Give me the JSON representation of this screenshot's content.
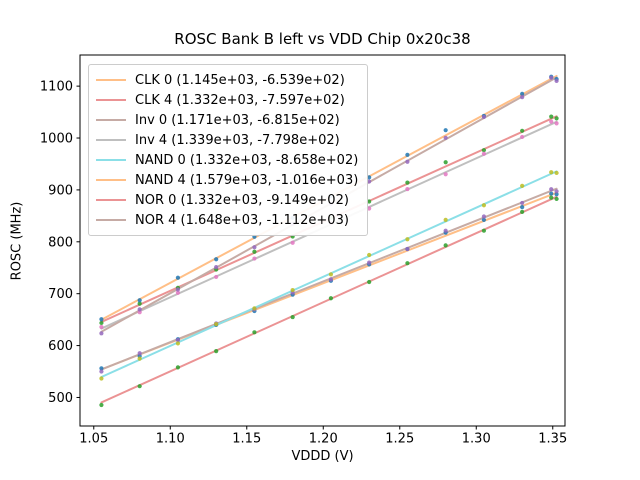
{
  "title": "ROSC Bank B left vs VDD Chip 0x20c38",
  "chart_data": {
    "type": "scatter",
    "title": "ROSC Bank B left vs VDD Chip 0x20c38",
    "xlabel": "VDDD (V)",
    "ylabel": "ROSC (MHz)",
    "xlim": [
      1.041,
      1.358
    ],
    "ylim": [
      445,
      1160
    ],
    "xtick_labels": [
      "1.05",
      "1.10",
      "1.15",
      "1.20",
      "1.25",
      "1.30",
      "1.35"
    ],
    "xticks": [
      1.05,
      1.1,
      1.15,
      1.2,
      1.25,
      1.3,
      1.35
    ],
    "yticks": [
      500,
      600,
      700,
      800,
      900,
      1000,
      1100
    ],
    "grid": false,
    "legend_position": "upper left",
    "x": [
      1.055,
      1.08,
      1.105,
      1.13,
      1.155,
      1.18,
      1.205,
      1.23,
      1.255,
      1.28,
      1.305,
      1.33,
      1.349,
      1.3525
    ],
    "fit_line_span": [
      1.055,
      1.3525
    ],
    "series": [
      {
        "name": "CLK 0",
        "legend_label": "CLK 0 (1.145e+03, -6.539e+02)",
        "fit_slope": 1145,
        "fit_intercept": -653.9,
        "line_color": "#ffbf87",
        "point_color": "#1f77b4",
        "y": [
          556.1,
          579.7,
          612.3,
          639.9,
          666.5,
          698.2,
          724.8,
          756.4,
          786.0,
          817.7,
          842.3,
          866.9,
          892.7,
          891.7
        ]
      },
      {
        "name": "CLK 4",
        "legend_label": "CLK 4 (1.332e+03, -7.597e+02)",
        "fit_slope": 1332,
        "fit_intercept": -759.7,
        "line_color": "#eb9394",
        "point_color": "#2ca02c",
        "y": [
          643.6,
          680.9,
          711.2,
          746.5,
          780.8,
          810.1,
          846.4,
          877.7,
          914.0,
          953.3,
          976.6,
          1013.9,
          1041.2,
          1037.8
        ]
      },
      {
        "name": "Inv 0",
        "legend_label": "Inv 0 (1.171e+03, -6.815e+02)",
        "fit_slope": 1171,
        "fit_intercept": -681.5,
        "line_color": "#c6aba5",
        "point_color": "#9467bd",
        "y": [
          549.9,
          585.2,
          610.5,
          642.7,
          670.0,
          702.3,
          727.6,
          759.8,
          786.1,
          821.4,
          848.7,
          874.9,
          901.2,
          897.3
        ]
      },
      {
        "name": "Inv 4",
        "legend_label": "Inv 4 (1.339e+03, -7.798e+02)",
        "fit_slope": 1339,
        "fit_intercept": -779.8,
        "line_color": "#bfbfbf",
        "point_color": "#e377c2",
        "y": [
          635.8,
          664.3,
          701.8,
          732.3,
          767.7,
          798.2,
          835.7,
          864.2,
          901.6,
          930.1,
          969.6,
          1002.1,
          1031.5,
          1028.2
        ]
      },
      {
        "name": "NAND 0",
        "legend_label": "NAND 0 (1.332e+03, -8.658e+02)",
        "fit_slope": 1332,
        "fit_intercept": -865.8,
        "line_color": "#8bdfe7",
        "point_color": "#bcbd22",
        "y": [
          536.5,
          574.8,
          604.1,
          641.4,
          671.7,
          707.0,
          737.3,
          774.6,
          804.9,
          842.2,
          870.5,
          907.8,
          934.1,
          932.7
        ]
      },
      {
        "name": "NAND 4",
        "legend_label": "NAND 4 (1.579e+03, -1.016e+03)",
        "fit_slope": 1579,
        "fit_intercept": -1016,
        "line_color": "#ffbf87",
        "point_color": "#1f77b4",
        "y": [
          650.8,
          687.3,
          730.8,
          766.3,
          809.7,
          846.2,
          887.7,
          924.2,
          967.6,
          1015.1,
          1042.6,
          1085.1,
          1118.1,
          1113.6
        ]
      },
      {
        "name": "NOR 0",
        "legend_label": "NOR 0 (1.332e+03, -9.149e+02)",
        "fit_slope": 1332,
        "fit_intercept": -914.9,
        "line_color": "#eb9394",
        "point_color": "#2ca02c",
        "y": [
          485.4,
          521.7,
          558.0,
          589.3,
          625.6,
          654.9,
          691.2,
          722.5,
          758.8,
          793.1,
          821.4,
          857.7,
          885.0,
          882.6
        ]
      },
      {
        "name": "NOR 4",
        "legend_label": "NOR 4 (1.648e+03, -1.112e+03)",
        "fit_slope": 1648,
        "fit_intercept": -1112,
        "line_color": "#c6aba5",
        "point_color": "#9467bd",
        "y": [
          623.6,
          669.8,
          708.0,
          751.2,
          789.5,
          834.7,
          872.9,
          916.1,
          954.2,
          1000.4,
          1040.6,
          1078.8,
          1116.2,
          1110.0
        ]
      }
    ]
  }
}
